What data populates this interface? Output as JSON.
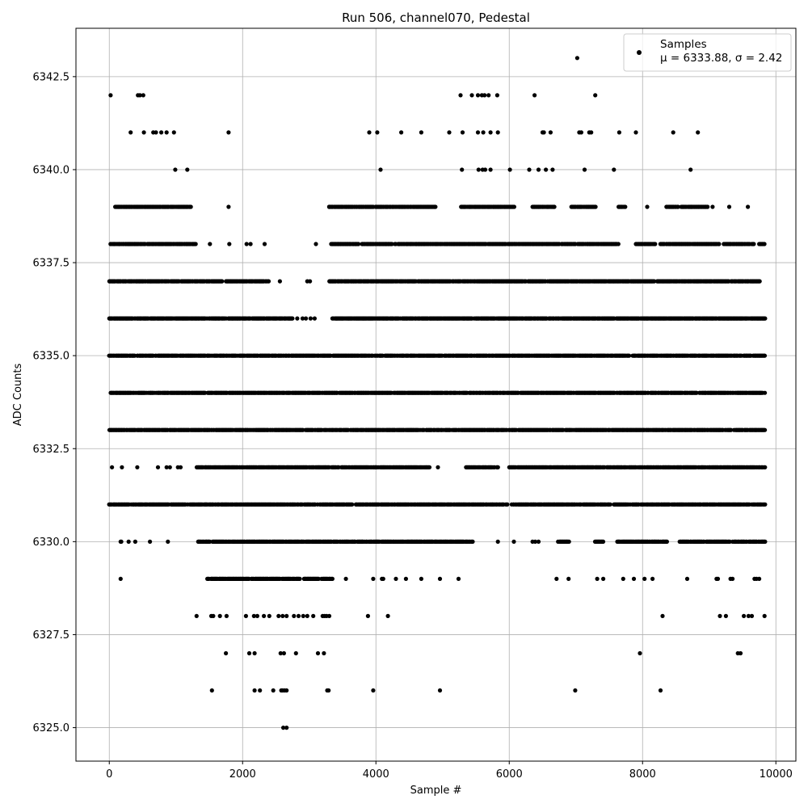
{
  "chart_data": {
    "type": "scatter",
    "title": "Run 506, channel070, Pedestal",
    "xlabel": "Sample #",
    "ylabel": "ADC Counts",
    "xlim": [
      -500,
      10300
    ],
    "ylim": [
      6324.1,
      6343.8
    ],
    "xticks": [
      0,
      2000,
      4000,
      6000,
      8000,
      10000
    ],
    "xtick_labels": [
      "0",
      "2000",
      "4000",
      "6000",
      "8000",
      "10000"
    ],
    "yticks": [
      6325.0,
      6327.5,
      6330.0,
      6332.5,
      6335.0,
      6337.5,
      6340.0,
      6342.5
    ],
    "ytick_labels": [
      "6325.0",
      "6327.5",
      "6330.0",
      "6332.5",
      "6335.0",
      "6337.5",
      "6340.0",
      "6342.5"
    ],
    "grid": true,
    "legend": {
      "position": "top-right",
      "entries": [
        {
          "name": "Samples",
          "stats": "μ = 6333.88, σ = 2.42"
        }
      ]
    },
    "marker_color": "#000000",
    "x_range": [
      0,
      9850
    ],
    "level_bands": [
      {
        "y": 6343,
        "x": [
          7020
        ]
      },
      {
        "y": 6342,
        "x": [
          20,
          430,
          460,
          510,
          5270,
          5440,
          5530,
          5590,
          5630,
          5690,
          5820,
          6380,
          7290
        ]
      },
      {
        "y": 6341,
        "x": [
          320,
          520,
          660,
          700,
          780,
          860,
          970,
          1790,
          3900,
          4020,
          4380,
          4680,
          5100,
          5300,
          5530,
          5610,
          5720,
          5830,
          6500,
          6520,
          6620,
          7050,
          7080,
          7200,
          7230,
          7650,
          7900,
          8460,
          8830
        ]
      },
      {
        "y": 6340,
        "x": [
          990,
          1170,
          4070,
          5290,
          5540,
          5600,
          5640,
          5720,
          6010,
          6300,
          6440,
          6550,
          6650,
          7130,
          7570,
          8720
        ]
      },
      {
        "y": 6339,
        "x": [
          1790,
          3300,
          3390,
          8070,
          8500,
          8730,
          9050,
          9300,
          9580
        ],
        "ranges": [
          [
            90,
            1230
          ],
          [
            3300,
            4900
          ],
          [
            5280,
            6080
          ],
          [
            6350,
            6680
          ],
          [
            6920,
            7300
          ],
          [
            7640,
            7740
          ],
          [
            8360,
            8980
          ]
        ]
      },
      {
        "y": 6338,
        "x": [
          1510,
          1800,
          2060,
          2120,
          2330,
          3100
        ],
        "ranges": [
          [
            20,
            1300
          ],
          [
            3330,
            7000
          ],
          [
            7030,
            7640
          ],
          [
            7900,
            8200
          ],
          [
            8270,
            9160
          ],
          [
            9220,
            9680
          ],
          [
            9750,
            9830
          ]
        ]
      },
      {
        "y": 6337,
        "x": [
          2560,
          2970,
          3010
        ],
        "ranges": [
          [
            0,
            1700
          ],
          [
            1750,
            2400
          ],
          [
            3300,
            9760
          ]
        ]
      },
      {
        "y": 6336,
        "x": [
          2820,
          2900,
          2950,
          3020,
          3080
        ],
        "ranges": [
          [
            0,
            2750
          ],
          [
            3350,
            9840
          ]
        ]
      },
      {
        "y": 6335,
        "x": [],
        "ranges": [
          [
            0,
            9840
          ]
        ]
      },
      {
        "y": 6334,
        "x": [],
        "ranges": [
          [
            0,
            9840
          ]
        ]
      },
      {
        "y": 6333,
        "x": [],
        "ranges": [
          [
            0,
            9840
          ]
        ]
      },
      {
        "y": 6332,
        "x": [
          40,
          190,
          420,
          730,
          860,
          910,
          1030,
          1070,
          4930
        ],
        "ranges": [
          [
            1310,
            3450
          ],
          [
            3480,
            4800
          ],
          [
            5350,
            5850
          ],
          [
            6000,
            9840
          ]
        ]
      },
      {
        "y": 6331,
        "x": [],
        "ranges": [
          [
            0,
            5980
          ],
          [
            6040,
            7520
          ],
          [
            7570,
            9840
          ]
        ]
      },
      {
        "y": 6330,
        "x": [
          170,
          180,
          290,
          390,
          610,
          880,
          5830,
          6070,
          6350,
          6390,
          6440
        ],
        "ranges": [
          [
            1320,
            3340
          ],
          [
            3360,
            5450
          ],
          [
            6730,
            6900
          ],
          [
            7290,
            7420
          ],
          [
            7620,
            8370
          ],
          [
            8560,
            9840
          ]
        ]
      },
      {
        "y": 6329,
        "x": [
          170,
          3550,
          3960,
          4090,
          4110,
          4300,
          4450,
          4680,
          4960,
          5240,
          6710,
          6890,
          7320,
          7410,
          7710,
          7870,
          8030,
          8150,
          8670,
          9110,
          9130,
          9320,
          9350,
          9680,
          9710,
          9750
        ],
        "ranges": [
          [
            1470,
            2860
          ],
          [
            2920,
            3350
          ]
        ]
      },
      {
        "y": 6328,
        "x": [
          1310,
          1530,
          1560,
          1660,
          1760,
          2050,
          2170,
          2220,
          2320,
          2400,
          2540,
          2600,
          2660,
          2770,
          2840,
          2910,
          2970,
          3060,
          3200,
          3230,
          3260,
          3300,
          3880,
          4180,
          8300,
          9160,
          9250,
          9520,
          9590,
          9640,
          9830
        ]
      },
      {
        "y": 6327,
        "x": [
          1750,
          2100,
          2180,
          2570,
          2620,
          2800,
          3130,
          3220,
          7960,
          9430,
          9470
        ]
      },
      {
        "y": 6326,
        "x": [
          1540,
          2180,
          2260,
          2460,
          2580,
          2600,
          2630,
          2660,
          3270,
          3290,
          3960,
          4960,
          6990,
          8270
        ]
      },
      {
        "y": 6325,
        "x": [
          2610,
          2660
        ]
      }
    ]
  }
}
